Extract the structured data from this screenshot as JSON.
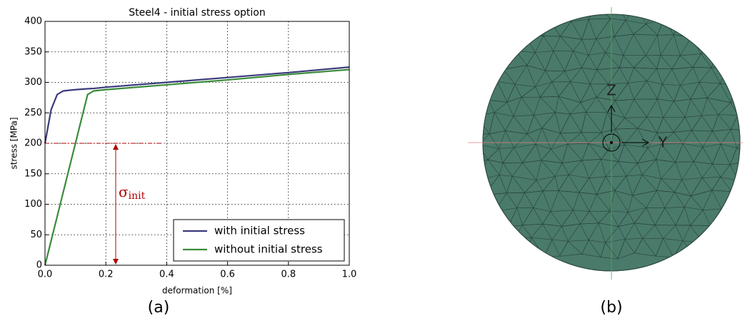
{
  "chart_data": {
    "type": "line",
    "title": "Steel4 - initial stress option",
    "x_label": "deformation [%]",
    "y_label": "stress [MPa]",
    "x": [
      0,
      0.02,
      0.04,
      0.06,
      0.1,
      0.14,
      0.16,
      0.2,
      0.4,
      0.6,
      0.8,
      1.0
    ],
    "series": [
      {
        "name": "with initial stress",
        "color": "#3b3b7c",
        "values": [
          200,
          255,
          280,
          286,
          288,
          289.5,
          290,
          292,
          300,
          308,
          316,
          325
        ]
      },
      {
        "name": "without initial stress",
        "color": "#3a8c3a",
        "values": [
          0,
          40,
          80,
          120,
          200,
          280,
          286,
          288,
          296,
          304,
          313,
          321
        ]
      }
    ],
    "xlim": [
      0,
      1.0
    ],
    "ylim": [
      0,
      400
    ],
    "xticks": [
      {
        "value": 0,
        "label": "0.0"
      },
      0.2,
      0.4,
      0.6,
      0.8,
      {
        "value": 1.0,
        "label": "1.0"
      }
    ],
    "yticks": [
      0,
      50,
      100,
      150,
      200,
      250,
      300,
      350,
      400
    ],
    "grid": true,
    "legend": "lower right",
    "annotation": {
      "text": "σ",
      "subscript": "init",
      "level": 200,
      "color": "#b00000"
    }
  },
  "captions": [
    "(a)",
    "(b)"
  ],
  "mesh": {
    "axis_labels": [
      "Z",
      "Y"
    ],
    "color": "#4a7a6a"
  }
}
